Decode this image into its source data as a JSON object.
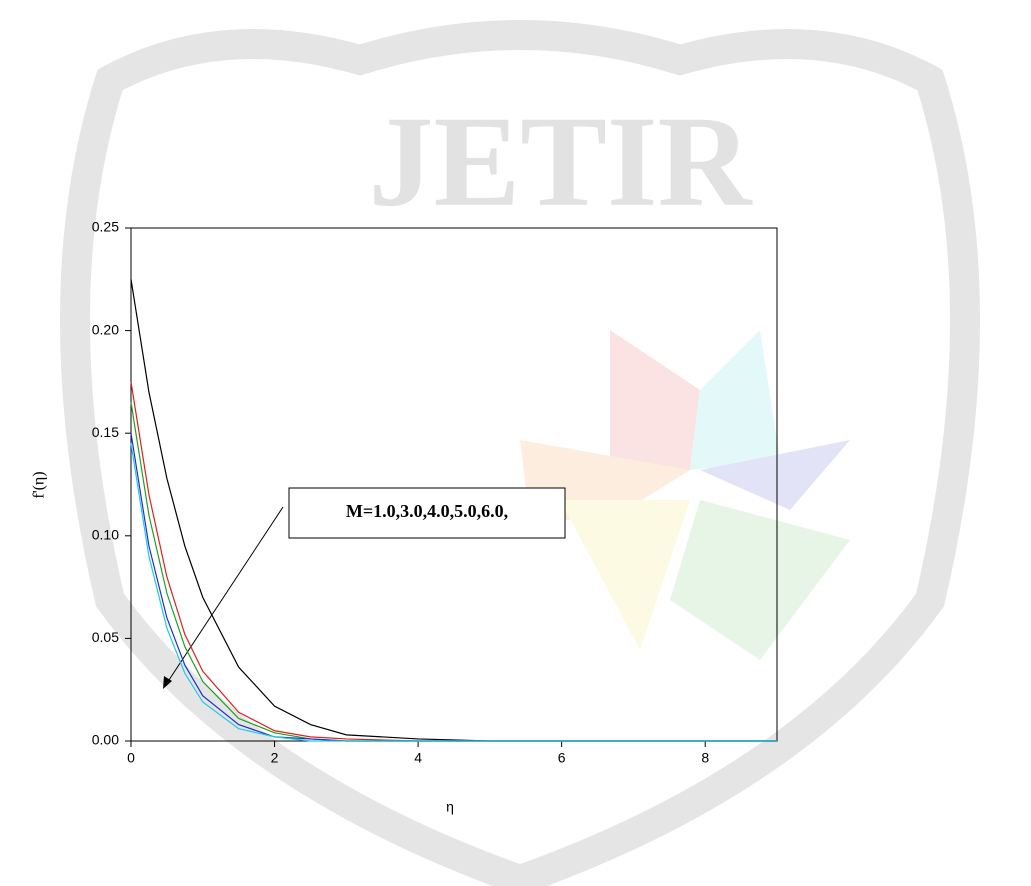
{
  "watermark": "JETIR",
  "chart_data": {
    "type": "line",
    "xlabel": "η",
    "ylabel": "f'(η)",
    "annotation": "M=1.0,3.0,4.0,5.0,6.0,",
    "x": [
      0,
      0.25,
      0.5,
      0.75,
      1,
      1.5,
      2,
      2.5,
      3,
      4,
      5,
      6,
      7,
      8,
      9
    ],
    "series": [
      {
        "color": "#000000",
        "values": [
          0.225,
          0.17,
          0.128,
          0.095,
          0.07,
          0.036,
          0.017,
          0.008,
          0.003,
          0.001,
          0,
          0,
          0,
          0,
          0
        ]
      },
      {
        "color": "#e02020",
        "values": [
          0.175,
          0.12,
          0.08,
          0.052,
          0.034,
          0.014,
          0.005,
          0.002,
          0.001,
          0,
          0,
          0,
          0,
          0,
          0
        ]
      },
      {
        "color": "#20a020",
        "values": [
          0.165,
          0.11,
          0.072,
          0.046,
          0.029,
          0.011,
          0.004,
          0.001,
          0,
          0,
          0,
          0,
          0,
          0,
          0
        ]
      },
      {
        "color": "#2030d0",
        "values": [
          0.15,
          0.095,
          0.06,
          0.037,
          0.022,
          0.008,
          0.002,
          0.001,
          0,
          0,
          0,
          0,
          0,
          0,
          0
        ]
      },
      {
        "color": "#20c8e0",
        "values": [
          0.145,
          0.09,
          0.055,
          0.033,
          0.019,
          0.006,
          0.002,
          0,
          0,
          0,
          0,
          0,
          0,
          0,
          0
        ]
      }
    ],
    "xlim": [
      0,
      9
    ],
    "ylim": [
      0,
      0.25
    ],
    "xticks": [
      0,
      2,
      4,
      6,
      8
    ],
    "yticks": [
      {
        "value": 0,
        "label": "0.00"
      },
      {
        "value": 0.05,
        "label": "0.05"
      },
      {
        "value": 0.1,
        "label": "0.10"
      },
      {
        "value": 0.15,
        "label": "0.15"
      },
      {
        "value": 0.2,
        "label": "0.20"
      },
      {
        "value": 0.25,
        "label": "0.25"
      }
    ]
  }
}
